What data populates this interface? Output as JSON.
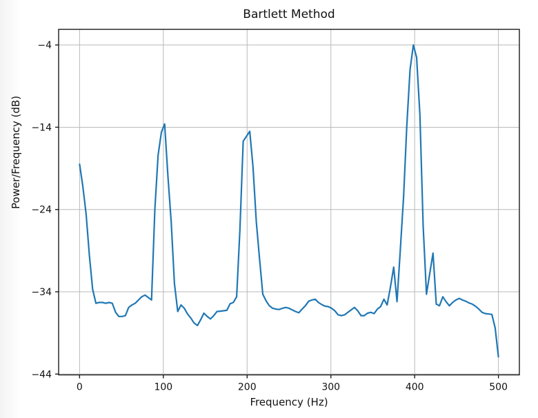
{
  "chart_data": {
    "type": "line",
    "title": "Bartlett Method",
    "xlabel": "Frequency (Hz)",
    "ylabel": "Power/Frequency (dB)",
    "xlim": [
      -25,
      525
    ],
    "ylim": [
      -44.1,
      -2.1
    ],
    "grid": true,
    "legend": "none",
    "line_color": "#1f77b4",
    "grid_color": "#b8b8b8",
    "spine_color": "#1a1a1a",
    "x_ticks": [
      0,
      100,
      200,
      300,
      400,
      500
    ],
    "x_tick_labels": [
      "0",
      "100",
      "200",
      "300",
      "400",
      "500"
    ],
    "y_ticks": [
      -4,
      -14,
      -24,
      -34,
      -44
    ],
    "y_tick_labels": [
      "−4",
      "−14",
      "−24",
      "−34",
      "−44"
    ],
    "bin_hz": 3.90625,
    "x_start_hz": 0,
    "values_db": [
      -18.5,
      -21.2,
      -24.6,
      -29.6,
      -33.7,
      -35.4,
      -35.3,
      -35.3,
      -35.4,
      -35.3,
      -35.4,
      -36.5,
      -37.0,
      -37.0,
      -36.9,
      -35.9,
      -35.6,
      -35.4,
      -35.0,
      -34.6,
      -34.4,
      -34.7,
      -35.0,
      -24.0,
      -17.4,
      -14.6,
      -13.6,
      -20.0,
      -25.5,
      -33.0,
      -36.4,
      -35.6,
      -36.0,
      -36.7,
      -37.2,
      -37.8,
      -38.1,
      -37.4,
      -36.6,
      -37.0,
      -37.3,
      -36.9,
      -36.4,
      -36.35,
      -36.3,
      -36.25,
      -35.45,
      -35.3,
      -34.6,
      -26.5,
      -15.7,
      -15.1,
      -14.5,
      -18.8,
      -25.5,
      -30.0,
      -34.3,
      -35.1,
      -35.7,
      -36.0,
      -36.1,
      -36.15,
      -36.0,
      -35.9,
      -36.0,
      -36.2,
      -36.4,
      -36.55,
      -36.1,
      -35.7,
      -35.15,
      -35.0,
      -34.9,
      -35.3,
      -35.55,
      -35.75,
      -35.8,
      -36.0,
      -36.3,
      -36.8,
      -36.9,
      -36.8,
      -36.5,
      -36.2,
      -35.9,
      -36.3,
      -36.9,
      -36.9,
      -36.6,
      -36.5,
      -36.65,
      -36.1,
      -35.8,
      -34.9,
      -35.6,
      -33.4,
      -31.0,
      -35.2,
      -29.0,
      -22.5,
      -13.8,
      -7.0,
      -4.0,
      -5.5,
      -12.5,
      -26.0,
      -34.3,
      -31.8,
      -29.3,
      -35.5,
      -35.7,
      -34.6,
      -35.2,
      -35.7,
      -35.3,
      -35.0,
      -34.8,
      -35.0,
      -35.15,
      -35.35,
      -35.5,
      -35.75,
      -36.1,
      -36.5,
      -36.65,
      -36.7,
      -36.75,
      -38.4,
      -41.9
    ]
  }
}
